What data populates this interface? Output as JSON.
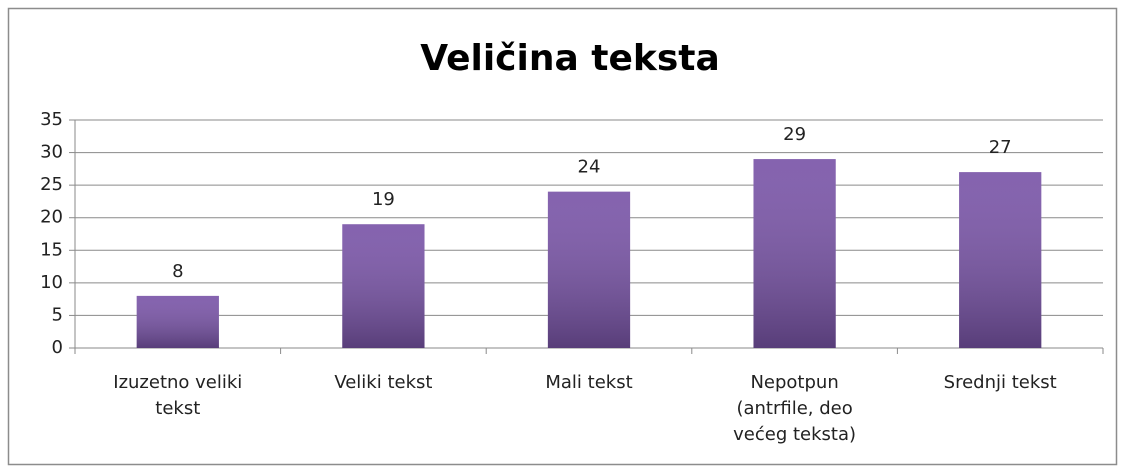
{
  "chart_data": {
    "type": "bar",
    "title": "Veličina teksta",
    "categories": [
      "Izuzetno veliki tekst",
      "Veliki tekst",
      "Mali tekst",
      "Nepotpun (antrfile, deo većeg teksta)",
      "Srednji tekst"
    ],
    "values": [
      8,
      19,
      24,
      29,
      27
    ],
    "color": "#7a55a8",
    "ylim": [
      0,
      35
    ],
    "yticks": [
      0,
      5,
      10,
      15,
      20,
      25,
      30,
      35
    ],
    "grid": true
  }
}
